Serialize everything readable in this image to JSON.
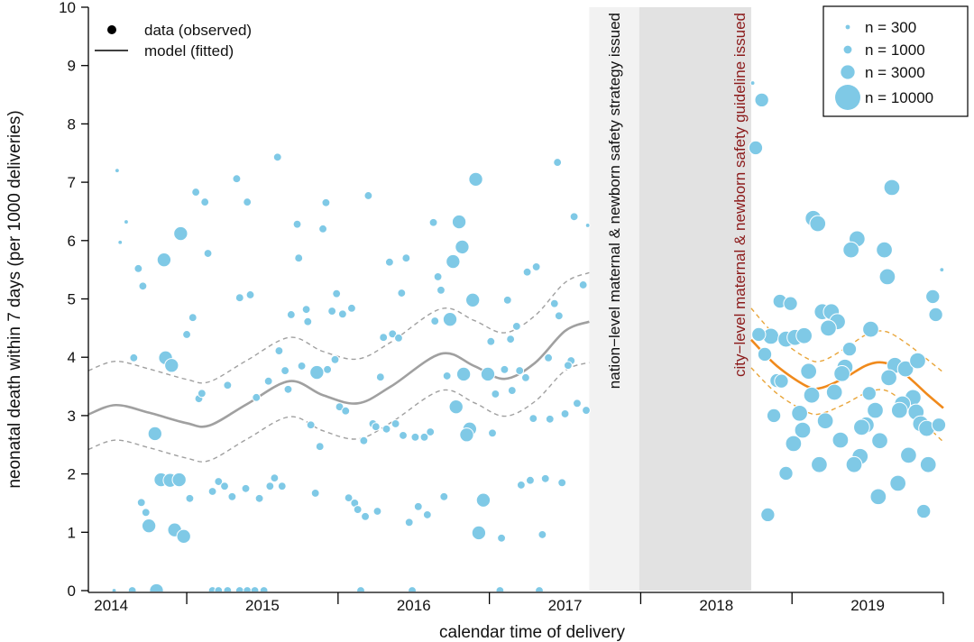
{
  "chart_data": {
    "type": "scatter",
    "xlabel": "calendar time of delivery",
    "ylabel": "neonatal death within 7 days (per 1000 deliveries)",
    "xlim": [
      2014.35,
      2020.0
    ],
    "ylim": [
      0,
      10
    ],
    "x_tick_labels": [
      "2014",
      "2015",
      "2016",
      "2017",
      "2018",
      "2019"
    ],
    "y_tick_labels": [
      "0",
      "1",
      "2",
      "3",
      "4",
      "5",
      "6",
      "7",
      "8",
      "9",
      "10"
    ],
    "grid": false,
    "legend": {
      "placement": "top-left",
      "data_label": "data (observed)",
      "model_label": "model (fitted)"
    },
    "size_legend": {
      "placement": "top-right",
      "entries": [
        {
          "n": 300,
          "label": "n = 300"
        },
        {
          "n": 1000,
          "label": "n = 1000"
        },
        {
          "n": 3000,
          "label": "n = 3000"
        },
        {
          "n": 10000,
          "label": "n = 10000"
        }
      ]
    },
    "colors": {
      "points": "#7fc9e6",
      "model_before": "#a0a0a0",
      "model_after": "#f08a1c",
      "band_after": "#e8a53a",
      "period_light": "#f2f2f2",
      "period_dark": "#e2e2e2",
      "annotation_city": "#8b1a1a"
    },
    "periods": [
      {
        "from": 2017.66,
        "to": 2017.99,
        "label": "nation−level maternal & newborn safety strategy issued",
        "shade": "light"
      },
      {
        "from": 2017.99,
        "to": 2018.73,
        "label": "city−level maternal & newborn safety guideline issued",
        "shade": "dark"
      }
    ],
    "points": [
      [
        2014.54,
        7.2,
        300
      ],
      [
        2014.6,
        6.32,
        300
      ],
      [
        2014.56,
        5.97,
        300
      ],
      [
        2014.68,
        5.52,
        1000
      ],
      [
        2014.71,
        5.22,
        1000
      ],
      [
        2014.85,
        5.67,
        3000
      ],
      [
        2014.96,
        6.12,
        3000
      ],
      [
        2015.06,
        6.83,
        1000
      ],
      [
        2015.12,
        6.66,
        1000
      ],
      [
        2015.14,
        5.78,
        1000
      ],
      [
        2015.33,
        7.06,
        1000
      ],
      [
        2015.4,
        6.66,
        1000
      ],
      [
        2015.6,
        7.43,
        1000
      ],
      [
        2015.35,
        5.02,
        1000
      ],
      [
        2015.42,
        5.07,
        1000
      ],
      [
        2015.04,
        4.68,
        1000
      ],
      [
        2015.0,
        4.39,
        1000
      ],
      [
        2014.65,
        3.99,
        1000
      ],
      [
        2014.86,
        3.99,
        3000
      ],
      [
        2014.9,
        3.86,
        3000
      ],
      [
        2015.08,
        3.29,
        1000
      ],
      [
        2015.1,
        3.38,
        1000
      ],
      [
        2015.27,
        3.52,
        1000
      ],
      [
        2015.46,
        3.31,
        1000
      ],
      [
        2015.54,
        3.59,
        1000
      ],
      [
        2015.61,
        4.11,
        1000
      ],
      [
        2015.65,
        3.77,
        1000
      ],
      [
        2015.67,
        3.45,
        1000
      ],
      [
        2014.79,
        2.69,
        3000
      ],
      [
        2014.83,
        1.9,
        3000
      ],
      [
        2014.89,
        1.89,
        3000
      ],
      [
        2014.95,
        1.9,
        3000
      ],
      [
        2015.02,
        1.58,
        1000
      ],
      [
        2014.7,
        1.51,
        1000
      ],
      [
        2014.73,
        1.34,
        1000
      ],
      [
        2014.75,
        1.11,
        3000
      ],
      [
        2014.92,
        1.04,
        3000
      ],
      [
        2014.98,
        0.93,
        3000
      ],
      [
        2015.17,
        1.7,
        1000
      ],
      [
        2015.21,
        1.87,
        1000
      ],
      [
        2015.25,
        1.79,
        1000
      ],
      [
        2015.3,
        1.61,
        1000
      ],
      [
        2015.39,
        1.75,
        1000
      ],
      [
        2015.48,
        1.58,
        1000
      ],
      [
        2015.55,
        1.79,
        1000
      ],
      [
        2015.58,
        1.93,
        1000
      ],
      [
        2015.63,
        1.79,
        1000
      ],
      [
        2014.52,
        0,
        300
      ],
      [
        2014.64,
        0,
        1000
      ],
      [
        2014.8,
        0,
        3000
      ],
      [
        2015.17,
        0,
        1000
      ],
      [
        2015.21,
        0,
        1000
      ],
      [
        2015.27,
        0,
        1000
      ],
      [
        2015.35,
        0,
        1000
      ],
      [
        2015.4,
        0,
        1000
      ],
      [
        2015.45,
        0,
        1000
      ],
      [
        2015.51,
        0,
        1000
      ],
      [
        2017.45,
        7.34,
        1000
      ],
      [
        2016.91,
        7.05,
        3000
      ],
      [
        2016.2,
        6.77,
        1000
      ],
      [
        2015.92,
        6.65,
        1000
      ],
      [
        2015.73,
        6.28,
        1000
      ],
      [
        2015.9,
        6.2,
        1000
      ],
      [
        2016.8,
        6.32,
        3000
      ],
      [
        2016.63,
        6.31,
        1000
      ],
      [
        2017.56,
        6.41,
        1000
      ],
      [
        2017.65,
        6.26,
        300
      ],
      [
        2016.82,
        5.89,
        3000
      ],
      [
        2016.76,
        5.64,
        3000
      ],
      [
        2015.74,
        5.7,
        1000
      ],
      [
        2016.34,
        5.63,
        1000
      ],
      [
        2016.45,
        5.7,
        1000
      ],
      [
        2017.25,
        5.46,
        1000
      ],
      [
        2017.31,
        5.55,
        1000
      ],
      [
        2016.66,
        5.38,
        1000
      ],
      [
        2016.68,
        5.15,
        1000
      ],
      [
        2016.42,
        5.1,
        1000
      ],
      [
        2015.99,
        5.09,
        1000
      ],
      [
        2016.89,
        4.98,
        3000
      ],
      [
        2017.12,
        4.98,
        1000
      ],
      [
        2017.62,
        5.24,
        1000
      ],
      [
        2017.43,
        4.92,
        1000
      ],
      [
        2017.46,
        4.71,
        1000
      ],
      [
        2015.69,
        4.73,
        1000
      ],
      [
        2015.79,
        4.82,
        1000
      ],
      [
        2015.8,
        4.61,
        1000
      ],
      [
        2015.96,
        4.79,
        1000
      ],
      [
        2016.03,
        4.74,
        1000
      ],
      [
        2016.09,
        4.84,
        1000
      ],
      [
        2016.64,
        4.62,
        1000
      ],
      [
        2016.74,
        4.65,
        3000
      ],
      [
        2017.18,
        4.53,
        1000
      ],
      [
        2017.14,
        4.31,
        1000
      ],
      [
        2017.01,
        4.27,
        1000
      ],
      [
        2016.3,
        4.34,
        1000
      ],
      [
        2016.36,
        4.4,
        1000
      ],
      [
        2016.4,
        4.33,
        1000
      ],
      [
        2015.98,
        3.96,
        1000
      ],
      [
        2015.76,
        3.85,
        1000
      ],
      [
        2015.86,
        3.74,
        3000
      ],
      [
        2015.93,
        3.79,
        1000
      ],
      [
        2016.28,
        3.66,
        1000
      ],
      [
        2016.72,
        3.68,
        1000
      ],
      [
        2016.83,
        3.71,
        3000
      ],
      [
        2016.99,
        3.71,
        3000
      ],
      [
        2017.1,
        3.79,
        1000
      ],
      [
        2017.2,
        3.77,
        1000
      ],
      [
        2017.24,
        3.65,
        1000
      ],
      [
        2017.39,
        3.99,
        1000
      ],
      [
        2017.54,
        3.94,
        1000
      ],
      [
        2017.52,
        3.86,
        1000
      ],
      [
        2017.04,
        3.37,
        1000
      ],
      [
        2017.15,
        3.43,
        1000
      ],
      [
        2016.01,
        3.15,
        1000
      ],
      [
        2016.05,
        3.08,
        1000
      ],
      [
        2016.78,
        3.15,
        3000
      ],
      [
        2015.82,
        2.84,
        1000
      ],
      [
        2015.88,
        2.47,
        1000
      ],
      [
        2016.17,
        2.57,
        1000
      ],
      [
        2016.23,
        2.86,
        1000
      ],
      [
        2016.25,
        2.81,
        1000
      ],
      [
        2016.32,
        2.77,
        1000
      ],
      [
        2016.38,
        2.86,
        1000
      ],
      [
        2016.43,
        2.66,
        1000
      ],
      [
        2016.51,
        2.63,
        1000
      ],
      [
        2016.57,
        2.63,
        1000
      ],
      [
        2016.61,
        2.72,
        1000
      ],
      [
        2016.87,
        2.77,
        3000
      ],
      [
        2016.85,
        2.67,
        3000
      ],
      [
        2017.02,
        2.7,
        1000
      ],
      [
        2017.29,
        2.95,
        1000
      ],
      [
        2017.4,
        2.94,
        1000
      ],
      [
        2017.5,
        3.03,
        1000
      ],
      [
        2017.58,
        3.21,
        1000
      ],
      [
        2017.64,
        3.09,
        1000
      ],
      [
        2015.85,
        1.67,
        1000
      ],
      [
        2016.07,
        1.59,
        1000
      ],
      [
        2016.11,
        1.5,
        1000
      ],
      [
        2016.13,
        1.39,
        1000
      ],
      [
        2016.18,
        1.27,
        1000
      ],
      [
        2016.26,
        1.36,
        1000
      ],
      [
        2016.47,
        1.17,
        1000
      ],
      [
        2016.53,
        1.44,
        1000
      ],
      [
        2016.59,
        1.3,
        1000
      ],
      [
        2016.7,
        1.61,
        1000
      ],
      [
        2016.96,
        1.55,
        3000
      ],
      [
        2017.21,
        1.81,
        1000
      ],
      [
        2017.27,
        1.89,
        1000
      ],
      [
        2017.37,
        1.92,
        1000
      ],
      [
        2017.48,
        1.85,
        1000
      ],
      [
        2016.93,
        0.99,
        3000
      ],
      [
        2017.08,
        0.9,
        1000
      ],
      [
        2017.35,
        0.96,
        1000
      ],
      [
        2016.15,
        0,
        1000
      ],
      [
        2016.49,
        0,
        1000
      ],
      [
        2017.07,
        0,
        1000
      ],
      [
        2017.33,
        0,
        1000
      ],
      [
        2018.74,
        8.7,
        300
      ],
      [
        2018.8,
        8.41,
        3000
      ],
      [
        2018.76,
        7.59,
        3000
      ],
      [
        2019.66,
        6.91,
        4000
      ],
      [
        2019.14,
        6.38,
        4000
      ],
      [
        2019.17,
        6.29,
        4000
      ],
      [
        2019.43,
        6.03,
        4000
      ],
      [
        2019.39,
        5.84,
        4000
      ],
      [
        2019.61,
        5.84,
        4000
      ],
      [
        2019.63,
        5.38,
        4000
      ],
      [
        2019.99,
        5.5,
        300
      ],
      [
        2019.93,
        5.04,
        3000
      ],
      [
        2019.95,
        4.73,
        3000
      ],
      [
        2018.92,
        4.96,
        3000
      ],
      [
        2018.99,
        4.92,
        3000
      ],
      [
        2019.2,
        4.78,
        4000
      ],
      [
        2019.26,
        4.78,
        4000
      ],
      [
        2019.3,
        4.61,
        4000
      ],
      [
        2019.24,
        4.5,
        4000
      ],
      [
        2018.78,
        4.39,
        3000
      ],
      [
        2018.86,
        4.36,
        4000
      ],
      [
        2018.96,
        4.31,
        4000
      ],
      [
        2019.02,
        4.34,
        4000
      ],
      [
        2019.08,
        4.37,
        4000
      ],
      [
        2019.52,
        4.48,
        4000
      ],
      [
        2018.82,
        4.05,
        3000
      ],
      [
        2019.38,
        4.14,
        3000
      ],
      [
        2019.35,
        3.83,
        4000
      ],
      [
        2019.33,
        3.72,
        4000
      ],
      [
        2019.11,
        3.76,
        4000
      ],
      [
        2019.68,
        3.86,
        4000
      ],
      [
        2019.75,
        3.8,
        4000
      ],
      [
        2019.83,
        3.94,
        4000
      ],
      [
        2019.64,
        3.65,
        4000
      ],
      [
        2018.9,
        3.6,
        3000
      ],
      [
        2018.93,
        3.59,
        3000
      ],
      [
        2019.13,
        3.35,
        4000
      ],
      [
        2019.28,
        3.4,
        4000
      ],
      [
        2019.51,
        3.38,
        3000
      ],
      [
        2018.88,
        3.0,
        3000
      ],
      [
        2019.05,
        3.04,
        4000
      ],
      [
        2019.22,
        2.91,
        4000
      ],
      [
        2019.55,
        3.09,
        4000
      ],
      [
        2019.8,
        3.31,
        4000
      ],
      [
        2019.73,
        3.2,
        4000
      ],
      [
        2019.71,
        3.09,
        4000
      ],
      [
        2019.82,
        3.06,
        4000
      ],
      [
        2019.85,
        2.86,
        4000
      ],
      [
        2019.89,
        2.78,
        4000
      ],
      [
        2019.97,
        2.84,
        3000
      ],
      [
        2019.49,
        2.84,
        4000
      ],
      [
        2019.46,
        2.8,
        4000
      ],
      [
        2019.07,
        2.75,
        4000
      ],
      [
        2019.01,
        2.52,
        4000
      ],
      [
        2019.32,
        2.58,
        4000
      ],
      [
        2019.58,
        2.57,
        4000
      ],
      [
        2019.45,
        2.3,
        4000
      ],
      [
        2019.41,
        2.16,
        4000
      ],
      [
        2019.77,
        2.32,
        4000
      ],
      [
        2019.9,
        2.16,
        4000
      ],
      [
        2019.18,
        2.16,
        4000
      ],
      [
        2018.96,
        2.01,
        3000
      ],
      [
        2019.7,
        1.84,
        4000
      ],
      [
        2019.57,
        1.61,
        4000
      ],
      [
        2018.84,
        1.3,
        3000
      ],
      [
        2019.87,
        1.36,
        3000
      ]
    ],
    "model_before": {
      "x": [
        2014.35,
        2014.53,
        2014.75,
        2015.0,
        2015.15,
        2015.4,
        2015.68,
        2015.9,
        2016.13,
        2016.35,
        2016.68,
        2016.9,
        2017.1,
        2017.3,
        2017.5,
        2017.66
      ],
      "fit": [
        3.02,
        3.18,
        3.05,
        2.87,
        2.83,
        3.2,
        3.59,
        3.35,
        3.21,
        3.5,
        4.06,
        3.85,
        3.63,
        3.9,
        4.45,
        4.61
      ],
      "upper": [
        3.77,
        3.93,
        3.8,
        3.62,
        3.58,
        3.95,
        4.34,
        4.1,
        3.97,
        4.26,
        4.83,
        4.63,
        4.42,
        4.71,
        5.28,
        5.45
      ],
      "lower": [
        2.42,
        2.58,
        2.45,
        2.27,
        2.23,
        2.6,
        2.98,
        2.74,
        2.6,
        2.88,
        3.43,
        3.22,
        2.99,
        3.24,
        3.77,
        3.91
      ]
    },
    "model_after": {
      "x": [
        2018.73,
        2018.9,
        2019.1,
        2019.2,
        2019.35,
        2019.5,
        2019.62,
        2019.75,
        2019.9,
        2020.0
      ],
      "fit": [
        4.3,
        3.85,
        3.5,
        3.48,
        3.65,
        3.87,
        3.9,
        3.7,
        3.35,
        3.13
      ],
      "upper": [
        4.84,
        4.35,
        3.98,
        3.94,
        4.15,
        4.4,
        4.44,
        4.25,
        3.95,
        3.74
      ],
      "lower": [
        3.82,
        3.38,
        3.06,
        3.04,
        3.2,
        3.4,
        3.43,
        3.2,
        2.8,
        2.55
      ]
    }
  }
}
